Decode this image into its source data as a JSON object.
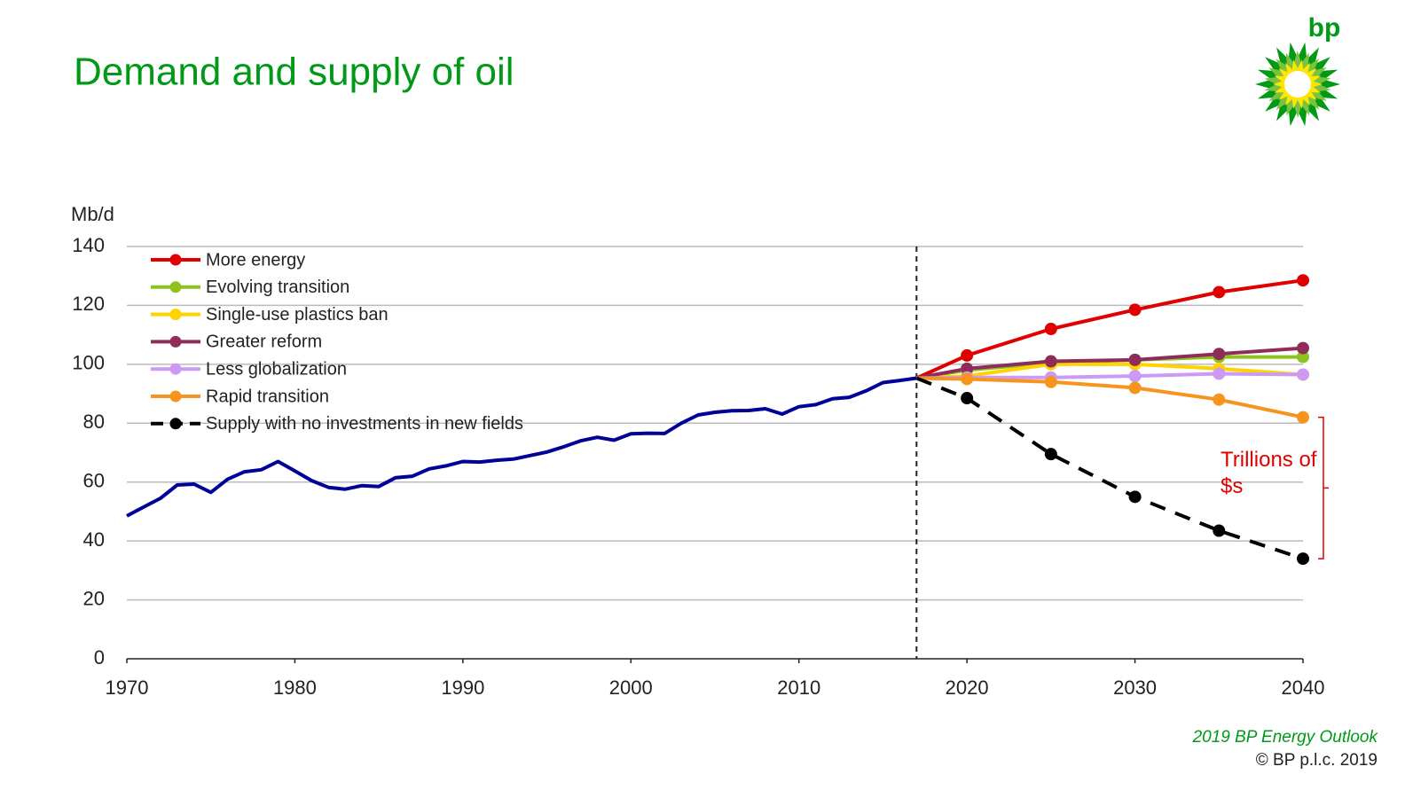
{
  "chart_data": {
    "type": "line",
    "title": "Demand and supply of oil",
    "y_label": "Mb/d",
    "xlim": [
      1970,
      2040
    ],
    "xticks": [
      1970,
      1980,
      1990,
      2000,
      2010,
      2020,
      2030,
      2040
    ],
    "ylim": [
      0,
      140
    ],
    "yticks": [
      0,
      20,
      40,
      60,
      80,
      100,
      120,
      140
    ],
    "grid": true,
    "legend": "upper left",
    "history": {
      "color": "#000099",
      "x": [
        1970,
        1971,
        1972,
        1973,
        1974,
        1975,
        1976,
        1977,
        1978,
        1979,
        1980,
        1981,
        1982,
        1983,
        1984,
        1985,
        1986,
        1987,
        1988,
        1989,
        1990,
        1991,
        1992,
        1993,
        1994,
        1995,
        1996,
        1997,
        1998,
        1999,
        2000,
        2001,
        2002,
        2003,
        2004,
        2005,
        2006,
        2007,
        2008,
        2009,
        2010,
        2011,
        2012,
        2013,
        2014,
        2015,
        2016,
        2017
      ],
      "values": [
        48.5,
        51.5,
        54.5,
        59,
        59.3,
        56.5,
        61,
        63.5,
        64.2,
        67,
        63.8,
        60.5,
        58.2,
        57.6,
        58.8,
        58.5,
        61.5,
        62,
        64.5,
        65.5,
        67,
        66.8,
        67.4,
        67.8,
        69,
        70.2,
        72,
        74,
        75.2,
        74.2,
        76.4,
        76.6,
        76.5,
        80,
        82.8,
        83.7,
        84.2,
        84.3,
        84.9,
        83.1,
        85.6,
        86.3,
        88.3,
        88.8,
        91,
        93.8,
        94.5,
        95.3
      ]
    },
    "series": [
      {
        "name": "More energy",
        "color": "#e00000",
        "x": [
          2017,
          2020,
          2025,
          2030,
          2035,
          2040
        ],
        "values": [
          95.3,
          103,
          112,
          118.5,
          124.5,
          128.5
        ]
      },
      {
        "name": "Evolving transition",
        "color": "#8dc21f",
        "x": [
          2017,
          2020,
          2025,
          2030,
          2035,
          2040
        ],
        "values": [
          95.3,
          98,
          100.5,
          101.5,
          102.5,
          102.5
        ]
      },
      {
        "name": "Single-use plastics ban",
        "color": "#ffd200",
        "x": [
          2017,
          2020,
          2025,
          2030,
          2035,
          2040
        ],
        "values": [
          95.3,
          96,
          100,
          100,
          98.5,
          96.5
        ]
      },
      {
        "name": "Greater reform",
        "color": "#8e2c5a",
        "x": [
          2017,
          2020,
          2025,
          2030,
          2035,
          2040
        ],
        "values": [
          95.3,
          98.5,
          101,
          101.5,
          103.5,
          105.5
        ]
      },
      {
        "name": "Less globalization",
        "color": "#cc99f5",
        "x": [
          2017,
          2020,
          2025,
          2030,
          2035,
          2040
        ],
        "values": [
          95.3,
          95.5,
          95.5,
          96,
          96.8,
          96.5
        ]
      },
      {
        "name": "Rapid transition",
        "color": "#f7941d",
        "x": [
          2017,
          2020,
          2025,
          2030,
          2035,
          2040
        ],
        "values": [
          95.3,
          95,
          94,
          92,
          88,
          82
        ]
      },
      {
        "name": "Supply with no investments in new fields",
        "color": "#000000",
        "line_style": "dashed",
        "x": [
          2017,
          2020,
          2025,
          2030,
          2035,
          2040
        ],
        "values": [
          95.3,
          88.5,
          69.5,
          55,
          43.5,
          34
        ]
      }
    ],
    "annotation": {
      "text": "Trillions of $s",
      "color": "#e00000"
    }
  },
  "footer": {
    "source": "2019 BP Energy Outlook",
    "copyright": "© BP p.l.c. 2019"
  },
  "logo": "bp"
}
